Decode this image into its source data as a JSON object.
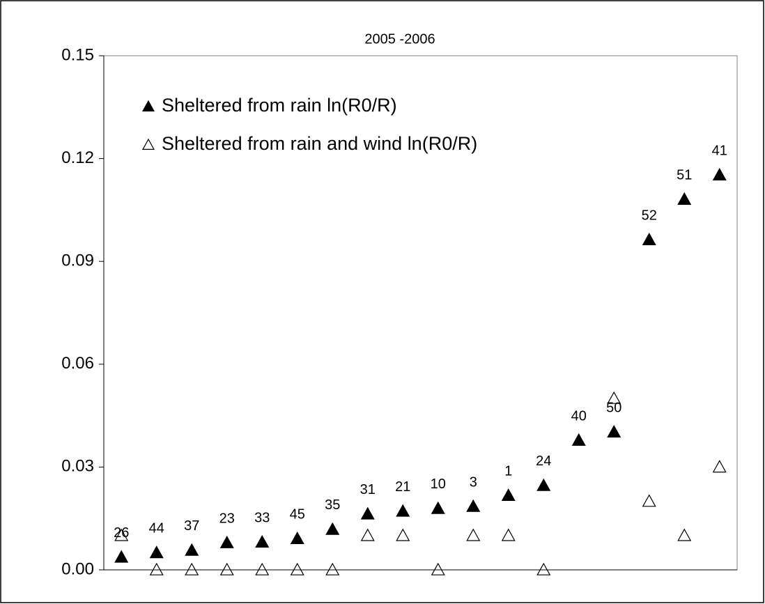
{
  "chart_data": {
    "type": "scatter",
    "title": "2005 -2006",
    "categories": [
      "26",
      "44",
      "37",
      "23",
      "33",
      "45",
      "35",
      "31",
      "21",
      "10",
      "3",
      "1",
      "24",
      "40",
      "50",
      "52",
      "51",
      "41"
    ],
    "series": [
      {
        "name": "Sheltered from rain ln(R0/R)",
        "color": "#000000",
        "filled": true,
        "values": [
          0.0037,
          0.005,
          0.0057,
          0.0079,
          0.0081,
          0.0091,
          0.0118,
          0.0163,
          0.0171,
          0.0179,
          0.0185,
          0.0217,
          0.0246,
          0.0378,
          0.0402,
          0.0963,
          0.1081,
          0.1152
        ]
      },
      {
        "name": "Sheltered from rain and wind ln(R0/R)",
        "color": "#000000",
        "filled": false,
        "values": [
          0.01,
          0,
          0,
          0,
          0,
          0,
          0,
          0.01,
          0.01,
          0,
          0.01,
          0.01,
          0,
          null,
          0.05,
          0.02,
          0.01,
          0.03
        ]
      }
    ],
    "ylim": [
      0,
      0.15
    ],
    "yticks": [
      {
        "value": 0,
        "label": "0.00"
      },
      0.03,
      0.06,
      0.09,
      0.12,
      0.15
    ],
    "legend": "upper-left"
  }
}
